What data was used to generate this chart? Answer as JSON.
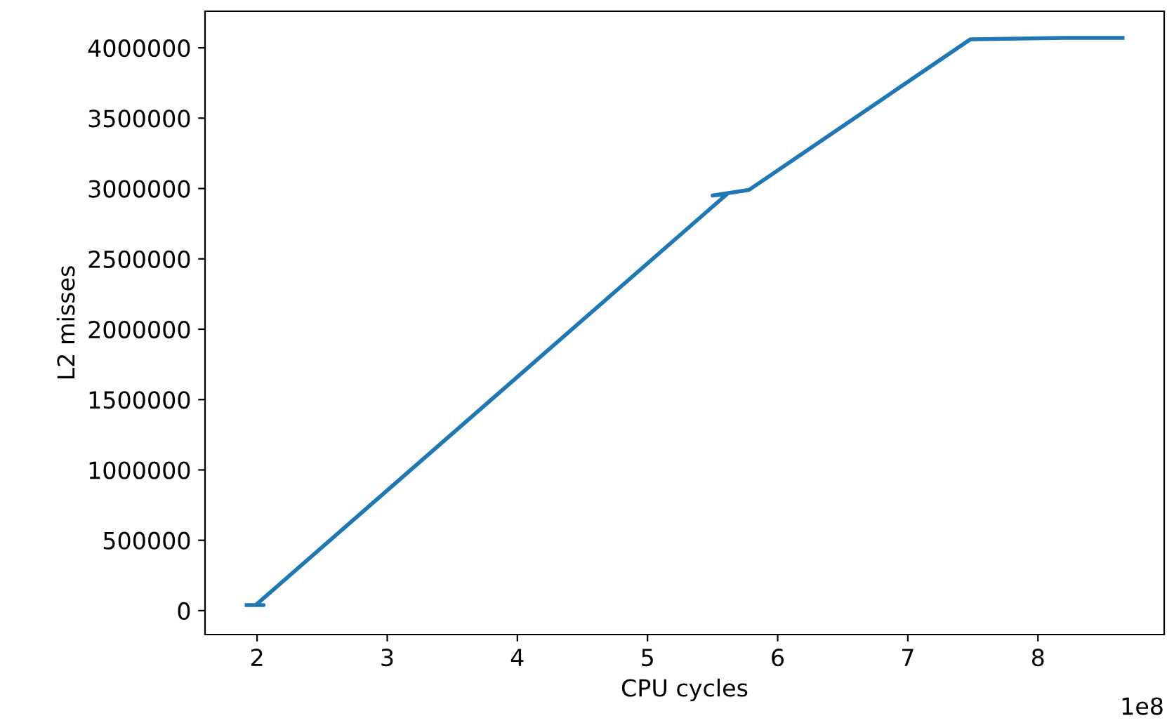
{
  "chart_data": {
    "type": "line",
    "xlabel": "CPU cycles",
    "ylabel": "L2 misses",
    "x": [
      1.92,
      2.05,
      1.99,
      5.61,
      5.5,
      5.78,
      7.48,
      8.2,
      8.65
    ],
    "series": [
      {
        "color": "#1f77b4",
        "values": [
          40000,
          40000,
          40000,
          2960000,
          2950000,
          2990000,
          4060000,
          4070000,
          4070000
        ]
      }
    ],
    "xlim": [
      1.6,
      8.97
    ],
    "ylim": [
      -170000,
      4260000
    ],
    "xticks": [
      2,
      3,
      4,
      5,
      6,
      7,
      8
    ],
    "yticks": [
      0,
      500000,
      1000000,
      1500000,
      2000000,
      2500000,
      3000000,
      3500000,
      4000000
    ],
    "annotations": [
      "1e8"
    ],
    "grid": false,
    "legend": false,
    "marker": "none",
    "line_style": "solid"
  }
}
